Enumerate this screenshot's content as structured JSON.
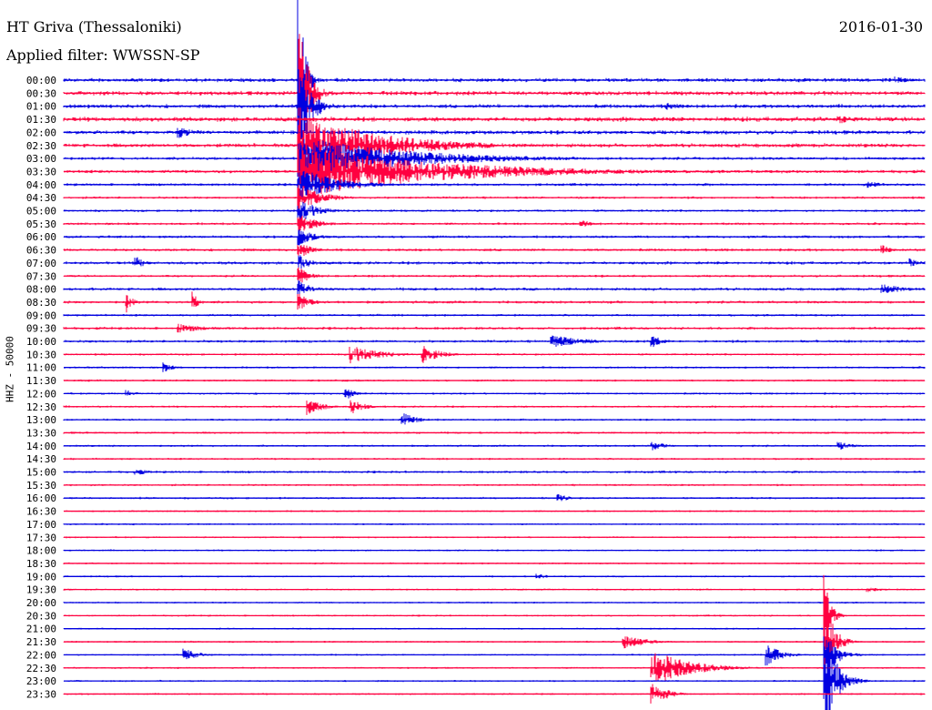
{
  "header": {
    "title": "HT Griva (Thessaloniki)",
    "subtitle": "Applied filter: WWSSN-SP",
    "date": "2016-01-30"
  },
  "channel_label": "HHZ - 50000",
  "colors": {
    "even_row": "#0000e0",
    "odd_row": "#ff0040",
    "text": "#000000",
    "background": "#ffffff"
  },
  "chart_data": {
    "type": "line",
    "description_kind": "helicorder",
    "row_labels": [
      "00:00",
      "00:30",
      "01:00",
      "01:30",
      "02:00",
      "02:30",
      "03:00",
      "03:30",
      "04:00",
      "04:30",
      "05:00",
      "05:30",
      "06:00",
      "06:30",
      "07:00",
      "07:30",
      "08:00",
      "08:30",
      "09:00",
      "09:30",
      "10:00",
      "10:30",
      "11:00",
      "11:30",
      "12:00",
      "12:30",
      "13:00",
      "13:30",
      "14:00",
      "14:30",
      "15:00",
      "15:30",
      "16:00",
      "16:30",
      "17:00",
      "17:30",
      "18:00",
      "18:30",
      "19:00",
      "19:30",
      "20:00",
      "20:30",
      "21:00",
      "21:30",
      "22:00",
      "22:30",
      "23:00",
      "23:30"
    ],
    "row_duration_minutes": 30,
    "baseline_noise": [
      2.5,
      2.8,
      2.5,
      3.0,
      2.6,
      2.6,
      2.0,
      2.2,
      1.8,
      1.6,
      1.6,
      1.6,
      1.8,
      1.8,
      2.0,
      1.6,
      2.0,
      1.8,
      1.6,
      1.8,
      1.8,
      1.4,
      1.4,
      1.4,
      1.4,
      1.4,
      1.4,
      1.4,
      1.4,
      1.4,
      1.6,
      1.4,
      1.4,
      1.2,
      1.2,
      1.2,
      1.2,
      1.2,
      1.2,
      1.2,
      1.2,
      1.2,
      1.2,
      1.2,
      1.2,
      1.2,
      1.2,
      1.2
    ],
    "events": [
      {
        "row": 0,
        "minute": 8.5,
        "amp": 5,
        "decay": 0.5
      },
      {
        "row": 0,
        "minute": 29,
        "amp": 4,
        "decay": 0.6
      },
      {
        "row": 2,
        "minute": 21,
        "amp": 5,
        "decay": 0.5
      },
      {
        "row": 3,
        "minute": 27,
        "amp": 5,
        "decay": 0.8
      },
      {
        "row": 4,
        "minute": 4,
        "amp": 7,
        "decay": 0.5
      },
      {
        "row": 5,
        "minute": 11,
        "amp": 4,
        "decay": 0.4
      },
      {
        "row": 0,
        "minute": 8.2,
        "amp": 120,
        "decay": 0.18
      },
      {
        "row": 1,
        "minute": 8.2,
        "amp": 90,
        "decay": 0.3
      },
      {
        "row": 2,
        "minute": 8.2,
        "amp": 60,
        "decay": 0.4
      },
      {
        "row": 5,
        "minute": 8.2,
        "amp": 40,
        "decay": 2.5
      },
      {
        "row": 6,
        "minute": 8.2,
        "amp": 25,
        "decay": 3.5
      },
      {
        "row": 7,
        "minute": 8.2,
        "amp": 30,
        "decay": 4.5
      },
      {
        "row": 8,
        "minute": 8.2,
        "amp": 20,
        "decay": 1.2
      },
      {
        "row": 9,
        "minute": 8.2,
        "amp": 14,
        "decay": 0.8
      },
      {
        "row": 10,
        "minute": 8.2,
        "amp": 14,
        "decay": 0.6
      },
      {
        "row": 11,
        "minute": 8.2,
        "amp": 12,
        "decay": 0.6
      },
      {
        "row": 12,
        "minute": 8.2,
        "amp": 10,
        "decay": 0.5
      },
      {
        "row": 13,
        "minute": 8.2,
        "amp": 10,
        "decay": 0.4
      },
      {
        "row": 14,
        "minute": 8.2,
        "amp": 10,
        "decay": 0.4
      },
      {
        "row": 15,
        "minute": 8.2,
        "amp": 10,
        "decay": 0.4
      },
      {
        "row": 16,
        "minute": 8.2,
        "amp": 10,
        "decay": 0.4
      },
      {
        "row": 17,
        "minute": 8.2,
        "amp": 10,
        "decay": 0.4
      },
      {
        "row": 8,
        "minute": 28,
        "amp": 4,
        "decay": 0.6
      },
      {
        "row": 11,
        "minute": 18,
        "amp": 5,
        "decay": 0.4
      },
      {
        "row": 13,
        "minute": 28.5,
        "amp": 6,
        "decay": 0.3
      },
      {
        "row": 14,
        "minute": 2.5,
        "amp": 8,
        "decay": 0.3
      },
      {
        "row": 14,
        "minute": 29.5,
        "amp": 7,
        "decay": 0.3
      },
      {
        "row": 16,
        "minute": 28.5,
        "amp": 6,
        "decay": 0.8
      },
      {
        "row": 17,
        "minute": 2.2,
        "amp": 12,
        "decay": 0.2
      },
      {
        "row": 17,
        "minute": 4.5,
        "amp": 12,
        "decay": 0.2
      },
      {
        "row": 19,
        "minute": 4,
        "amp": 5,
        "decay": 1.0
      },
      {
        "row": 20,
        "minute": 17,
        "amp": 7,
        "decay": 1.2
      },
      {
        "row": 20,
        "minute": 20.5,
        "amp": 7,
        "decay": 0.4
      },
      {
        "row": 21,
        "minute": 10,
        "amp": 10,
        "decay": 1.0
      },
      {
        "row": 21,
        "minute": 12.5,
        "amp": 10,
        "decay": 0.6
      },
      {
        "row": 22,
        "minute": 3.5,
        "amp": 6,
        "decay": 0.3
      },
      {
        "row": 24,
        "minute": 2.2,
        "amp": 5,
        "decay": 0.3
      },
      {
        "row": 24,
        "minute": 9.8,
        "amp": 8,
        "decay": 0.3
      },
      {
        "row": 25,
        "minute": 8.5,
        "amp": 10,
        "decay": 0.5
      },
      {
        "row": 25,
        "minute": 10,
        "amp": 10,
        "decay": 0.4
      },
      {
        "row": 26,
        "minute": 11.8,
        "amp": 8,
        "decay": 0.5
      },
      {
        "row": 28,
        "minute": 20.5,
        "amp": 5,
        "decay": 0.5
      },
      {
        "row": 28,
        "minute": 27,
        "amp": 5,
        "decay": 0.5
      },
      {
        "row": 30,
        "minute": 2.5,
        "amp": 4,
        "decay": 0.5
      },
      {
        "row": 32,
        "minute": 17.2,
        "amp": 5,
        "decay": 0.4
      },
      {
        "row": 38,
        "minute": 16.5,
        "amp": 3,
        "decay": 0.5
      },
      {
        "row": 39,
        "minute": 28,
        "amp": 3,
        "decay": 0.6
      },
      {
        "row": 43,
        "minute": 19.5,
        "amp": 8,
        "decay": 0.8
      },
      {
        "row": 44,
        "minute": 4.2,
        "amp": 7,
        "decay": 0.5
      },
      {
        "row": 44,
        "minute": 24.5,
        "amp": 12,
        "decay": 0.5
      },
      {
        "row": 44,
        "minute": 26.5,
        "amp": 30,
        "decay": 0.4
      },
      {
        "row": 45,
        "minute": 20.5,
        "amp": 22,
        "decay": 1.2
      },
      {
        "row": 46,
        "minute": 26.5,
        "amp": 60,
        "decay": 0.4
      },
      {
        "row": 43,
        "minute": 26.5,
        "amp": 60,
        "decay": 0.3
      },
      {
        "row": 41,
        "minute": 26.5,
        "amp": 45,
        "decay": 0.2
      },
      {
        "row": 47,
        "minute": 20.5,
        "amp": 14,
        "decay": 0.5
      }
    ]
  }
}
